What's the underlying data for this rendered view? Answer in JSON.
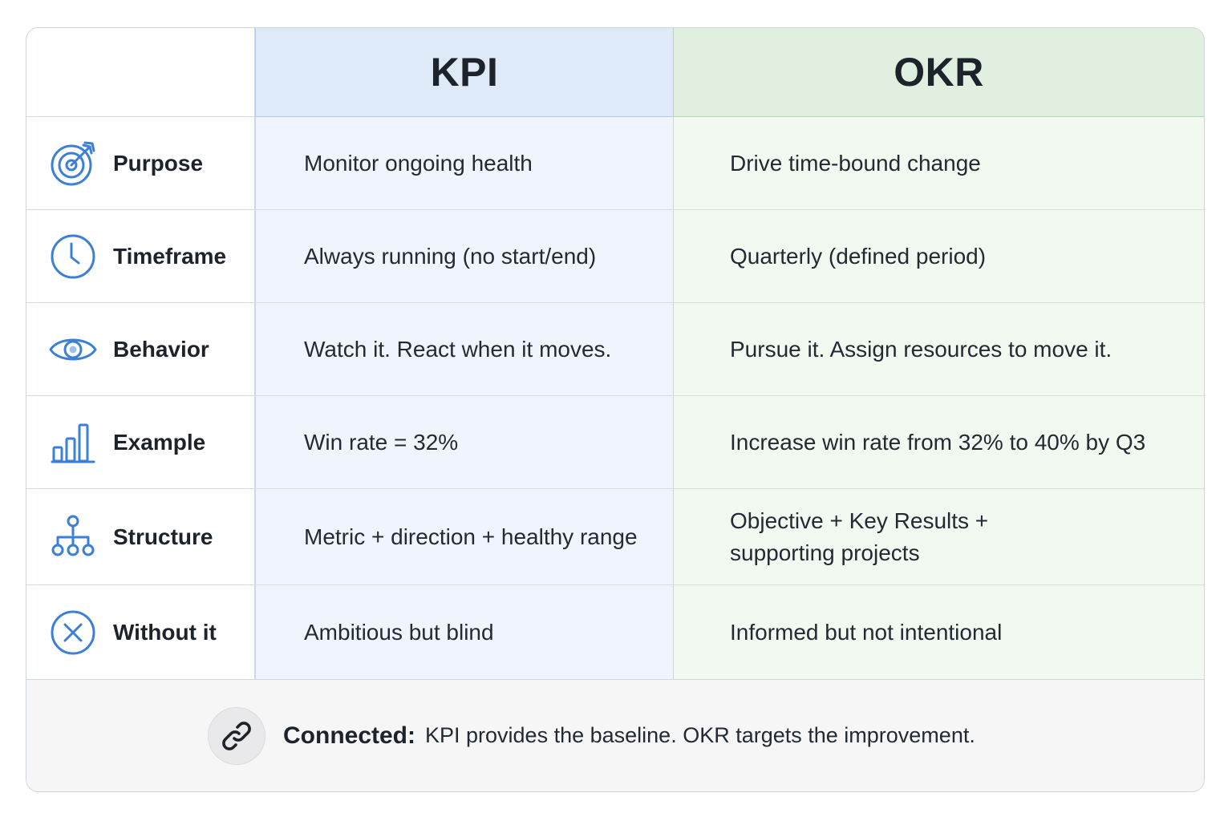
{
  "header": {
    "kpi_title": "KPI",
    "okr_title": "OKR"
  },
  "rows": [
    {
      "icon": "target-icon",
      "label": "Purpose",
      "kpi": "Monitor ongoing health",
      "okr": "Drive time-bound change"
    },
    {
      "icon": "clock-icon",
      "label": "Timeframe",
      "kpi": "Always running (no start/end)",
      "okr": "Quarterly (defined period)"
    },
    {
      "icon": "eye-icon",
      "label": "Behavior",
      "kpi": "Watch it. React when it moves.",
      "okr": "Pursue it. Assign resources to move it."
    },
    {
      "icon": "bar-chart-icon",
      "label": "Example",
      "kpi": "Win rate = 32%",
      "okr": "Increase win rate from 32% to 40% by Q3"
    },
    {
      "icon": "hierarchy-icon",
      "label": "Structure",
      "kpi": "Metric + direction + healthy range",
      "okr_line1": "Objective + Key Results +",
      "okr_line2": "supporting projects"
    },
    {
      "icon": "x-circle-icon",
      "label": "Without it",
      "kpi": "Ambitious but blind",
      "okr": "Informed but not intentional"
    }
  ],
  "footer": {
    "icon": "link-icon",
    "bold": "Connected:",
    "text": "KPI provides the baseline. OKR targets the improvement."
  },
  "colors": {
    "icon_blue": "#3b7fd6",
    "kpi_header_bg": "#dfeaf8",
    "okr_header_bg": "#e0efdf",
    "kpi_cell_bg": "#f0f5fd",
    "okr_cell_bg": "#f2f9f1"
  }
}
